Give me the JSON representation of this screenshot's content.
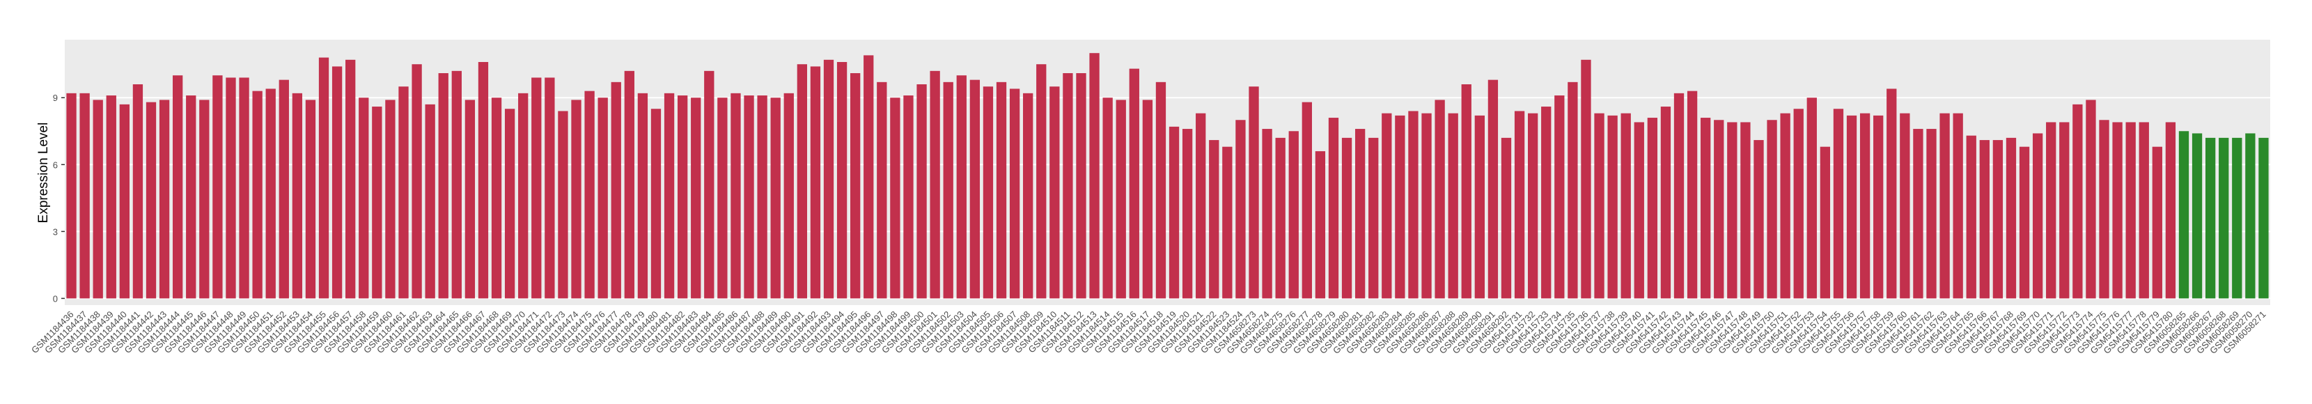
{
  "chart_data": {
    "type": "bar",
    "y_label": "Expression Level",
    "categories": [
      "GSM1184436",
      "GSM1184437",
      "GSM1184438",
      "GSM1184439",
      "GSM1184440",
      "GSM1184441",
      "GSM1184442",
      "GSM1184443",
      "GSM1184444",
      "GSM1184445",
      "GSM1184446",
      "GSM1184447",
      "GSM1184448",
      "GSM1184449",
      "GSM1184450",
      "GSM1184451",
      "GSM1184452",
      "GSM1184453",
      "GSM1184454",
      "GSM1184455",
      "GSM1184456",
      "GSM1184457",
      "GSM1184458",
      "GSM1184459",
      "GSM1184460",
      "GSM1184461",
      "GSM1184462",
      "GSM1184463",
      "GSM1184464",
      "GSM1184465",
      "GSM1184466",
      "GSM1184467",
      "GSM1184468",
      "GSM1184469",
      "GSM1184470",
      "GSM1184471",
      "GSM1184472",
      "GSM1184473",
      "GSM1184474",
      "GSM1184475",
      "GSM1184476",
      "GSM1184477",
      "GSM1184478",
      "GSM1184479",
      "GSM1184480",
      "GSM1184481",
      "GSM1184482",
      "GSM1184483",
      "GSM1184484",
      "GSM1184485",
      "GSM1184486",
      "GSM1184487",
      "GSM1184488",
      "GSM1184489",
      "GSM1184490",
      "GSM1184491",
      "GSM1184492",
      "GSM1184493",
      "GSM1184494",
      "GSM1184495",
      "GSM1184496",
      "GSM1184497",
      "GSM1184498",
      "GSM1184499",
      "GSM1184500",
      "GSM1184501",
      "GSM1184502",
      "GSM1184503",
      "GSM1184504",
      "GSM1184505",
      "GSM1184506",
      "GSM1184507",
      "GSM1184508",
      "GSM1184509",
      "GSM1184510",
      "GSM1184511",
      "GSM1184512",
      "GSM1184513",
      "GSM1184514",
      "GSM1184515",
      "GSM1184516",
      "GSM1184517",
      "GSM1184518",
      "GSM1184519",
      "GSM1184520",
      "GSM1184521",
      "GSM1184522",
      "GSM1184523",
      "GSM1184524",
      "GSM4658273",
      "GSM4658274",
      "GSM4658275",
      "GSM4658276",
      "GSM4658277",
      "GSM4658278",
      "GSM4658279",
      "GSM4658280",
      "GSM4658281",
      "GSM4658282",
      "GSM4658283",
      "GSM4658284",
      "GSM4658285",
      "GSM4658286",
      "GSM4658287",
      "GSM4658288",
      "GSM4658289",
      "GSM4658290",
      "GSM4658291",
      "GSM4658292",
      "GSM5415731",
      "GSM5415732",
      "GSM5415733",
      "GSM5415734",
      "GSM5415735",
      "GSM5415736",
      "GSM5415737",
      "GSM5415738",
      "GSM5415739",
      "GSM5415740",
      "GSM5415741",
      "GSM5415742",
      "GSM5415743",
      "GSM5415744",
      "GSM5415745",
      "GSM5415746",
      "GSM5415747",
      "GSM5415748",
      "GSM5415749",
      "GSM5415750",
      "GSM5415751",
      "GSM5415752",
      "GSM5415753",
      "GSM5415754",
      "GSM5415755",
      "GSM5415756",
      "GSM5415757",
      "GSM5415758",
      "GSM5415759",
      "GSM5415760",
      "GSM5415761",
      "GSM5415762",
      "GSM5415763",
      "GSM5415764",
      "GSM5415765",
      "GSM5415766",
      "GSM5415767",
      "GSM5415768",
      "GSM5415769",
      "GSM5415770",
      "GSM5415771",
      "GSM5415772",
      "GSM5415773",
      "GSM5415774",
      "GSM5415775",
      "GSM5415776",
      "GSM5415777",
      "GSM5415778",
      "GSM5415779",
      "GSM5415780",
      "GSM6058265",
      "GSM6058266",
      "GSM6058267",
      "GSM6058268",
      "GSM6058269",
      "GSM6058270",
      "GSM6058271"
    ],
    "series": [
      {
        "color": "#c2304c",
        "values": [
          9.2,
          9.2,
          8.9,
          9.1,
          8.7,
          9.6,
          8.8,
          8.9,
          10.0,
          9.1,
          8.9,
          10.0,
          9.9,
          9.9,
          9.3,
          9.4,
          9.8,
          9.2,
          8.9,
          10.8,
          10.4,
          10.7,
          9.0,
          8.6,
          8.9,
          9.5,
          10.5,
          8.7,
          10.1,
          10.2,
          8.9,
          10.6,
          9.0,
          8.5,
          9.2,
          9.9,
          9.9,
          8.4,
          8.9,
          9.3,
          9.0,
          9.7,
          10.2,
          9.2,
          8.5,
          9.2,
          9.1,
          9.0,
          10.2,
          9.0,
          9.2,
          9.1,
          9.1,
          9.0,
          9.2,
          10.5,
          10.4,
          10.7,
          10.6,
          10.1,
          10.9,
          9.7,
          9.0,
          9.1,
          9.6,
          10.2,
          9.7,
          10.0,
          9.8,
          9.5,
          9.7,
          9.4,
          9.2,
          10.5,
          9.5,
          10.1,
          10.1,
          11.0,
          9.0,
          8.9,
          10.3,
          8.9,
          9.7,
          7.7,
          7.6,
          8.3,
          7.1,
          6.8,
          8.0,
          9.5,
          7.6,
          7.2,
          7.5,
          8.8,
          6.6,
          8.1,
          7.2,
          7.6,
          7.2,
          8.3,
          8.2,
          8.4,
          8.3,
          8.9,
          8.3,
          9.6,
          8.2,
          9.8,
          7.2,
          8.4,
          8.3,
          8.6,
          9.1,
          9.7,
          10.7,
          8.3,
          8.2,
          8.3,
          7.9,
          8.1,
          8.6,
          9.2,
          9.3,
          8.1,
          8.0,
          7.9,
          7.9,
          7.1,
          8.0,
          8.3,
          8.5,
          9.0,
          6.8,
          8.5,
          8.2,
          8.3,
          8.2,
          9.4,
          8.3,
          7.6,
          7.6,
          8.3,
          8.3,
          7.3,
          7.1,
          7.1,
          7.2,
          6.8,
          7.4,
          7.9,
          7.9,
          8.7,
          8.9,
          8.0,
          7.9,
          7.9,
          7.9,
          6.8,
          7.9,
          null,
          null,
          null,
          null,
          null,
          null,
          null
        ]
      },
      {
        "color": "#2a8a2a",
        "values": [
          null,
          null,
          null,
          null,
          null,
          null,
          null,
          null,
          null,
          null,
          null,
          null,
          null,
          null,
          null,
          null,
          null,
          null,
          null,
          null,
          null,
          null,
          null,
          null,
          null,
          null,
          null,
          null,
          null,
          null,
          null,
          null,
          null,
          null,
          null,
          null,
          null,
          null,
          null,
          null,
          null,
          null,
          null,
          null,
          null,
          null,
          null,
          null,
          null,
          null,
          null,
          null,
          null,
          null,
          null,
          null,
          null,
          null,
          null,
          null,
          null,
          null,
          null,
          null,
          null,
          null,
          null,
          null,
          null,
          null,
          null,
          null,
          null,
          null,
          null,
          null,
          null,
          null,
          null,
          null,
          null,
          null,
          null,
          null,
          null,
          null,
          null,
          null,
          null,
          null,
          null,
          null,
          null,
          null,
          null,
          null,
          null,
          null,
          null,
          null,
          null,
          null,
          null,
          null,
          null,
          null,
          null,
          null,
          null,
          null,
          null,
          null,
          null,
          null,
          null,
          null,
          null,
          null,
          null,
          null,
          null,
          null,
          null,
          null,
          null,
          null,
          null,
          null,
          null,
          null,
          null,
          null,
          null,
          null,
          null,
          null,
          null,
          null,
          null,
          null,
          null,
          null,
          null,
          null,
          null,
          null,
          null,
          null,
          null,
          null,
          null,
          null,
          null,
          null,
          null,
          null,
          null,
          null,
          null,
          7.5,
          7.4,
          7.2,
          7.2,
          7.2,
          7.4,
          7.2
        ]
      }
    ],
    "ylim": [
      -0.3,
      11.6
    ],
    "yticks": [
      0,
      3,
      6,
      9
    ],
    "grid": true,
    "panel_color": "#ebebeb"
  }
}
